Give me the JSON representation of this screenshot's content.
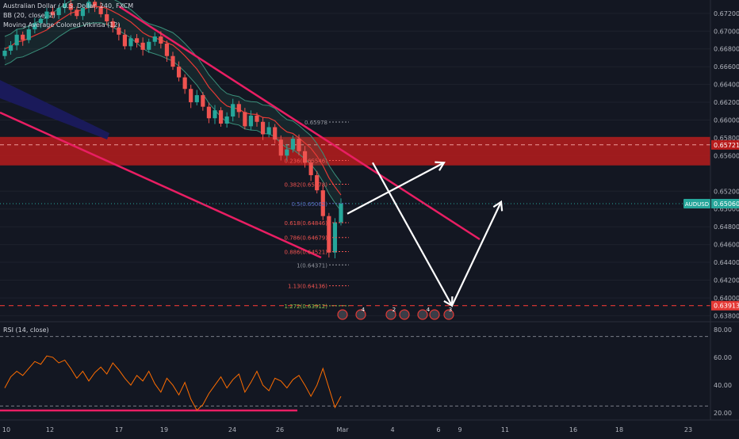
{
  "legend": {
    "symbol_line": "Australian Dollar / U.S. Dollar, 240, FXCM",
    "bb_line": "BB (20, close, 2)",
    "ma_line": "Moving Average Colored Vikinsa (12)",
    "rsi_line": "RSI (14, close)"
  },
  "colors": {
    "background": "#131722",
    "up_candle": "#26a69a",
    "down_candle": "#ef5350",
    "trendline": "#e91e63",
    "resistance_zone": "#b71c1c",
    "projection_arrow": "#ffffff",
    "rsi_line": "#ff6d00",
    "bb_band": "#2a6f5e"
  },
  "x_axis_labels": [
    "10",
    "12",
    "17",
    "19",
    "24",
    "26",
    "Mar",
    "4",
    "6",
    "9",
    "11",
    "16",
    "18",
    "23"
  ],
  "price_axis_labels": [
    "0.67200",
    "0.67000",
    "0.66800",
    "0.66600",
    "0.66400",
    "0.66200",
    "0.66000",
    "0.65800",
    "0.65600",
    "0.65200",
    "0.65000",
    "0.64800",
    "0.64600",
    "0.64400",
    "0.64200",
    "0.64000",
    "0.63800"
  ],
  "rsi_axis_labels": [
    "80.00",
    "60.00",
    "40.00",
    "20.00"
  ],
  "price_tags": [
    {
      "label": "0.65721",
      "bg": "#b71c1c"
    },
    {
      "label": "AUDUSD",
      "value": "0.65060",
      "bg": "#26a69a"
    },
    {
      "label": "0.63913",
      "bg": "#e53935"
    }
  ],
  "fib_levels": [
    {
      "ratio": "0.65978",
      "label": "0.65978",
      "price": 0.65978,
      "color": "#9598a1"
    },
    {
      "ratio": "0.236",
      "label": "0.236(0.65546)",
      "price": 0.65546,
      "color": "#ef5350"
    },
    {
      "ratio": "0.382",
      "label": "0.382(0.65278)",
      "price": 0.65278,
      "color": "#ef5350"
    },
    {
      "ratio": "0.5",
      "label": "0.5(0.65062)",
      "price": 0.65062,
      "color": "#5c6bc0"
    },
    {
      "ratio": "0.618",
      "label": "0.618(0.64846)",
      "price": 0.64846,
      "color": "#ef5350"
    },
    {
      "ratio": "0.786",
      "label": "0.786(0.64679)",
      "price": 0.64679,
      "color": "#ef5350"
    },
    {
      "ratio": "0.886",
      "label": "0.886(0.64521)",
      "price": 0.64521,
      "color": "#ef5350"
    },
    {
      "ratio": "1",
      "label": "1(0.64371)",
      "price": 0.64371,
      "color": "#9598a1"
    },
    {
      "ratio": "1.13",
      "label": "1.13(0.64136)",
      "price": 0.64136,
      "color": "#ef5350"
    },
    {
      "ratio": "1.272",
      "label": "1.272(0.63912)",
      "price": 0.63912,
      "color": "#8bc34a"
    }
  ],
  "event_markers": [
    "4",
    "2",
    "4",
    "3"
  ],
  "chart_data": {
    "type": "candlestick",
    "symbol": "AUDUSD",
    "timeframe": "240",
    "ylim": [
      0.6375,
      0.6735
    ],
    "resistance_zone": [
      0.6549,
      0.6581
    ],
    "last_price": 0.6506,
    "target_level": 0.63913,
    "projection_path": [
      [
        0.64946,
        0.65521
      ],
      [
        0.65521,
        0.63913
      ],
      [
        0.63913,
        0.6508
      ]
    ],
    "closes": [
      0.6678,
      0.6684,
      0.6696,
      0.669,
      0.6702,
      0.6709,
      0.6714,
      0.6722,
      0.6718,
      0.6726,
      0.6731,
      0.6724,
      0.6717,
      0.6726,
      0.6733,
      0.6728,
      0.6719,
      0.6711,
      0.6704,
      0.6696,
      0.6683,
      0.6692,
      0.6687,
      0.6679,
      0.6688,
      0.6694,
      0.6686,
      0.6672,
      0.666,
      0.6648,
      0.6635,
      0.662,
      0.6628,
      0.6615,
      0.6602,
      0.6611,
      0.6596,
      0.6604,
      0.6618,
      0.6609,
      0.6593,
      0.6605,
      0.6598,
      0.6584,
      0.6592,
      0.6578,
      0.656,
      0.6567,
      0.6579,
      0.6565,
      0.6552,
      0.6538,
      0.6521,
      0.6492,
      0.6451,
      0.6485,
      0.6506
    ],
    "rsi": {
      "ylim": [
        15,
        85
      ],
      "levels": [
        75,
        25
      ],
      "values": [
        38,
        46,
        50,
        47,
        52,
        57,
        55,
        61,
        60,
        56,
        58,
        52,
        45,
        50,
        43,
        49,
        53,
        48,
        56,
        51,
        45,
        40,
        47,
        43,
        50,
        41,
        35,
        45,
        40,
        33,
        42,
        30,
        22,
        26,
        34,
        40,
        46,
        38,
        44,
        48,
        35,
        42,
        50,
        40,
        36,
        45,
        43,
        38,
        44,
        47,
        40,
        32,
        40,
        52,
        38,
        24,
        32
      ]
    }
  }
}
